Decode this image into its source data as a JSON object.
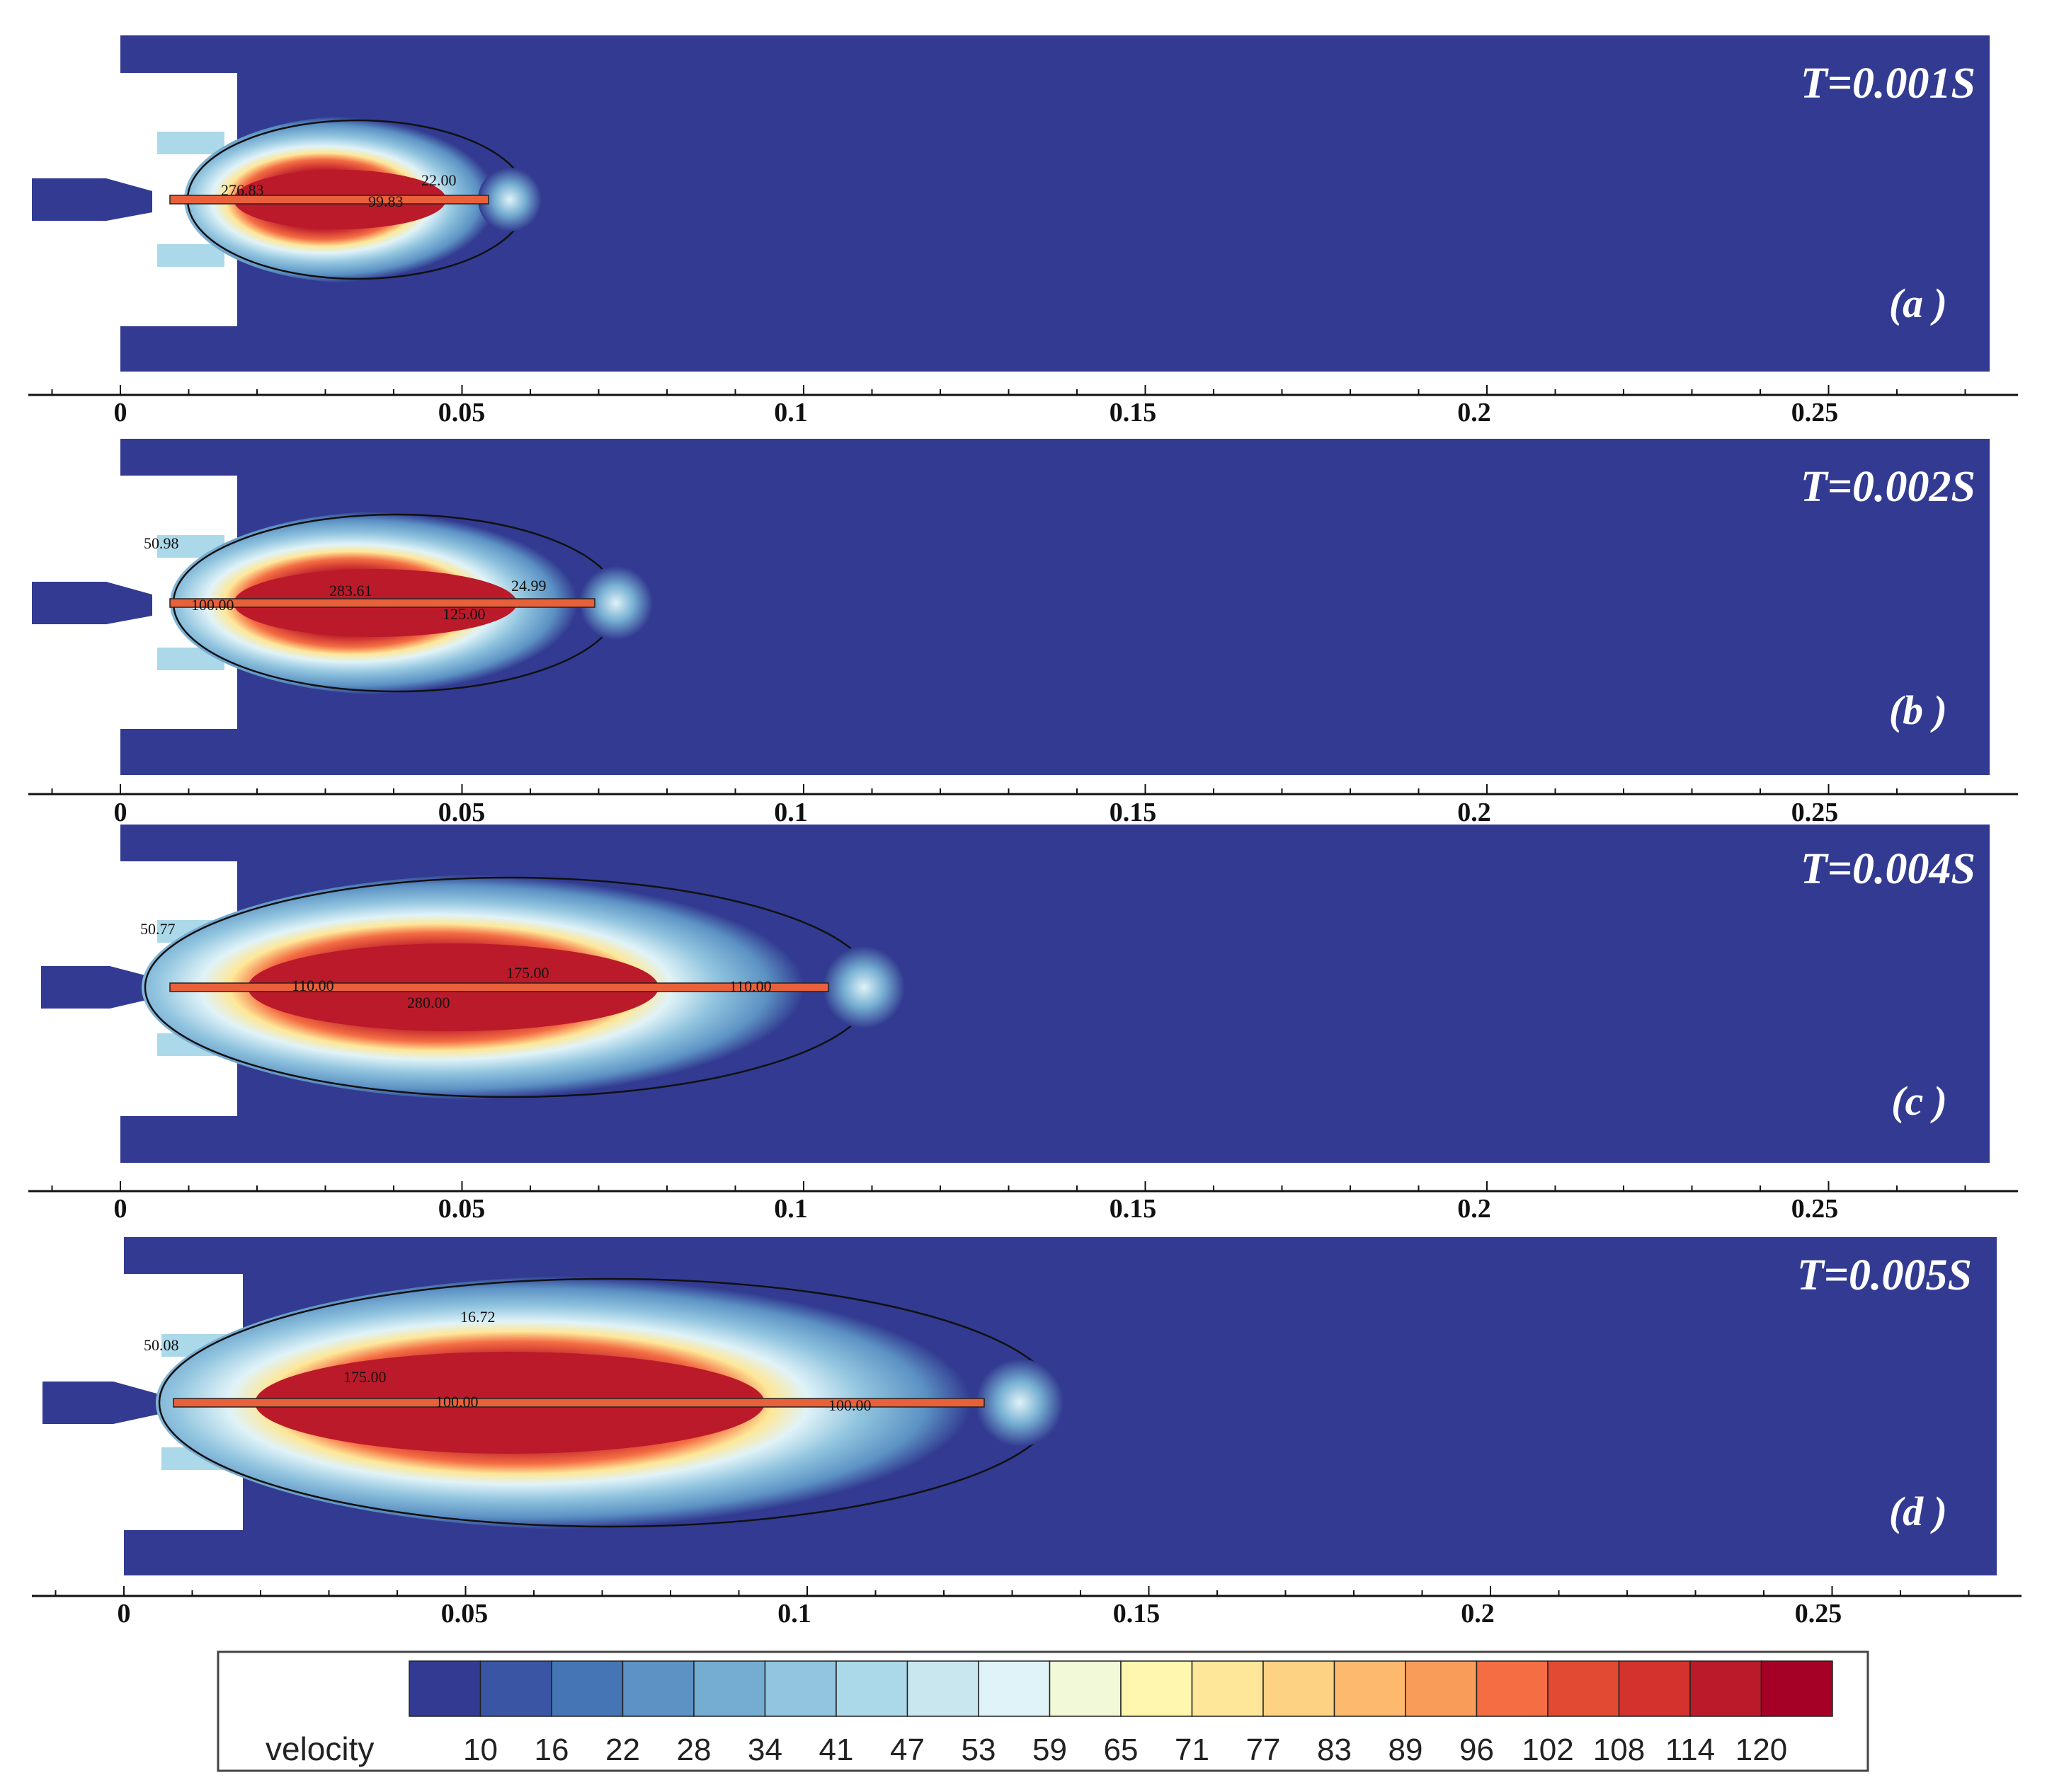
{
  "colors": {
    "background_flow": "#323b91",
    "wall": "#ffffff",
    "jet_core": "#e8613b"
  },
  "panels": [
    {
      "title": "T=0.001S",
      "label": "(a )",
      "contour_labels": [
        "276.83",
        "99.83",
        "22.00"
      ],
      "axis_ticks": [
        "0",
        "0.05",
        "0.1",
        "0.15",
        "0.2",
        "0.25"
      ]
    },
    {
      "title": "T=0.002S",
      "label": "(b )",
      "contour_labels": [
        "50.98",
        "100.00",
        "283.61",
        "24.99",
        "125.00"
      ],
      "axis_ticks": [
        "0",
        "0.05",
        "0.1",
        "0.15",
        "0.2",
        "0.25"
      ]
    },
    {
      "title": "T=0.004S",
      "label": "(c )",
      "contour_labels": [
        "50.77",
        "110.00",
        "175.00",
        "280.00",
        "110.00"
      ],
      "axis_ticks": [
        "0",
        "0.05",
        "0.1",
        "0.15",
        "0.2",
        "0.25"
      ]
    },
    {
      "title": "T=0.005S",
      "label": "(d )",
      "contour_labels": [
        "50.08",
        "16.72",
        "175.00",
        "100.00",
        "100.00"
      ],
      "axis_ticks": [
        "0",
        "0.05",
        "0.1",
        "0.15",
        "0.2",
        "0.25"
      ]
    }
  ],
  "legend": {
    "title": "velocity",
    "values": [
      "10",
      "16",
      "22",
      "28",
      "34",
      "41",
      "47",
      "53",
      "59",
      "65",
      "71",
      "77",
      "83",
      "89",
      "96",
      "102",
      "108",
      "114",
      "120"
    ],
    "colors": [
      "#323b91",
      "#3a55a4",
      "#4575b4",
      "#5c92c4",
      "#74add1",
      "#92c5df",
      "#abd9e9",
      "#c9e7ef",
      "#e0f3f8",
      "#f1f9d8",
      "#fff6b0",
      "#fee798",
      "#fdd283",
      "#fdba6f",
      "#f99c5a",
      "#f46d43",
      "#e24a33",
      "#d4322c",
      "#bb1a2a",
      "#a50026"
    ]
  }
}
